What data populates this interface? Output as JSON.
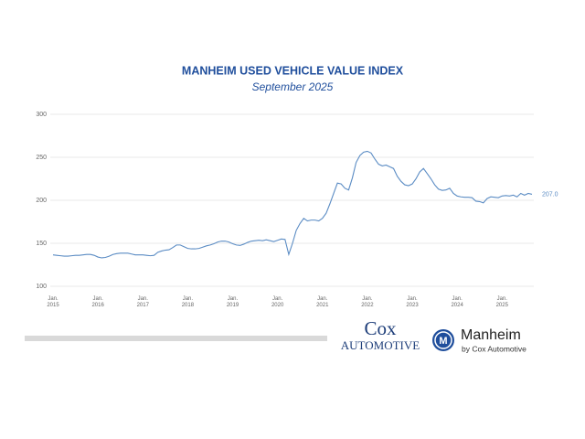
{
  "chart_data": {
    "type": "line",
    "title": "MANHEIM USED VEHICLE VALUE INDEX",
    "subtitle": "September 2025",
    "categories": [
      "Jan. 2015",
      null,
      null,
      null,
      null,
      null,
      null,
      null,
      null,
      null,
      null,
      null,
      "Jan. 2016",
      null,
      null,
      null,
      null,
      null,
      null,
      null,
      null,
      null,
      null,
      null,
      "Jan. 2017",
      null,
      null,
      null,
      null,
      null,
      null,
      null,
      null,
      null,
      null,
      null,
      "Jan. 2018",
      null,
      null,
      null,
      null,
      null,
      null,
      null,
      null,
      null,
      null,
      null,
      "Jan. 2019",
      null,
      null,
      null,
      null,
      null,
      null,
      null,
      null,
      null,
      null,
      null,
      "Jan. 2020",
      null,
      null,
      null,
      null,
      null,
      null,
      null,
      null,
      null,
      null,
      null,
      "Jan. 2021",
      null,
      null,
      null,
      null,
      null,
      null,
      null,
      null,
      null,
      null,
      null,
      "Jan. 2022",
      null,
      null,
      null,
      null,
      null,
      null,
      null,
      null,
      null,
      null,
      null,
      "Jan. 2023",
      null,
      null,
      null,
      null,
      null,
      null,
      null,
      null,
      null,
      null,
      null,
      "Jan. 2024",
      null,
      null,
      null,
      null,
      null,
      null,
      null,
      null,
      null,
      null,
      null,
      "Jan. 2025",
      null,
      null,
      null,
      null,
      null,
      null,
      null,
      null
    ],
    "series": [
      {
        "name": "Manheim Index",
        "color": "#5b8cc4",
        "values": [
          136.5,
          136,
          135.5,
          135,
          135,
          135.5,
          136,
          136,
          136.5,
          137,
          137,
          136,
          134,
          133,
          133.5,
          135,
          137,
          138,
          138.5,
          138.5,
          138.5,
          137.5,
          136.5,
          136.5,
          136.5,
          136,
          135.5,
          136,
          139.5,
          141,
          142,
          142.5,
          145,
          148,
          148,
          146,
          144,
          143.5,
          143.5,
          144,
          145.5,
          147,
          148,
          149.5,
          151.5,
          152.5,
          152.5,
          151.5,
          149.5,
          148,
          147.5,
          149,
          151,
          152.5,
          153,
          153.5,
          153,
          154,
          153,
          152,
          153.5,
          155,
          154.5,
          137,
          150,
          165,
          173,
          179,
          176,
          177,
          177,
          176,
          179,
          185,
          196,
          208,
          220,
          219,
          214,
          212,
          226,
          244,
          252,
          256,
          257,
          255,
          248,
          242,
          240,
          241,
          239,
          237,
          228,
          222,
          218,
          217,
          219,
          225,
          233,
          237,
          231,
          225,
          218,
          213,
          211.5,
          212,
          214,
          208,
          205,
          204,
          203.5,
          203.5,
          203,
          199,
          198.5,
          197,
          202,
          204,
          203.5,
          203,
          205,
          205.5,
          205,
          206,
          204,
          208,
          206,
          208,
          207
        ],
        "value_labels": [
          null,
          null,
          null,
          null,
          null,
          null,
          null,
          null,
          null,
          null,
          null,
          null,
          null,
          null,
          null,
          null,
          null,
          null,
          null,
          null,
          null,
          null,
          null,
          null,
          null,
          null,
          null,
          null,
          null,
          null,
          null,
          null,
          null,
          null,
          null,
          null,
          null,
          null,
          null,
          null,
          null,
          null,
          null,
          null,
          null,
          null,
          null,
          null,
          null,
          null,
          null,
          null,
          null,
          null,
          null,
          null,
          null,
          null,
          null,
          null,
          null,
          null,
          null,
          null,
          null,
          null,
          null,
          null,
          null,
          null,
          null,
          null,
          null,
          null,
          null,
          null,
          null,
          null,
          null,
          null,
          null,
          null,
          null,
          null,
          null,
          null,
          null,
          null,
          null,
          null,
          null,
          null,
          null,
          null,
          null,
          null,
          null,
          null,
          null,
          null,
          null,
          null,
          null,
          null,
          null,
          null,
          null,
          null,
          null,
          null,
          null,
          null,
          null,
          null,
          null,
          null,
          null,
          null,
          null,
          null,
          null,
          null,
          null,
          null,
          null,
          null,
          null,
          null,
          "207.0"
        ]
      }
    ],
    "ylim": [
      100,
      300
    ],
    "yticks": [
      100,
      150,
      200,
      250,
      300
    ],
    "grid": true
  },
  "logos": {
    "cox_top": "Cox",
    "cox_bottom": "AUTOMOTIVE",
    "manheim_mark": "M",
    "manheim": "Manheim",
    "manheim_sub": "by Cox Automotive"
  }
}
